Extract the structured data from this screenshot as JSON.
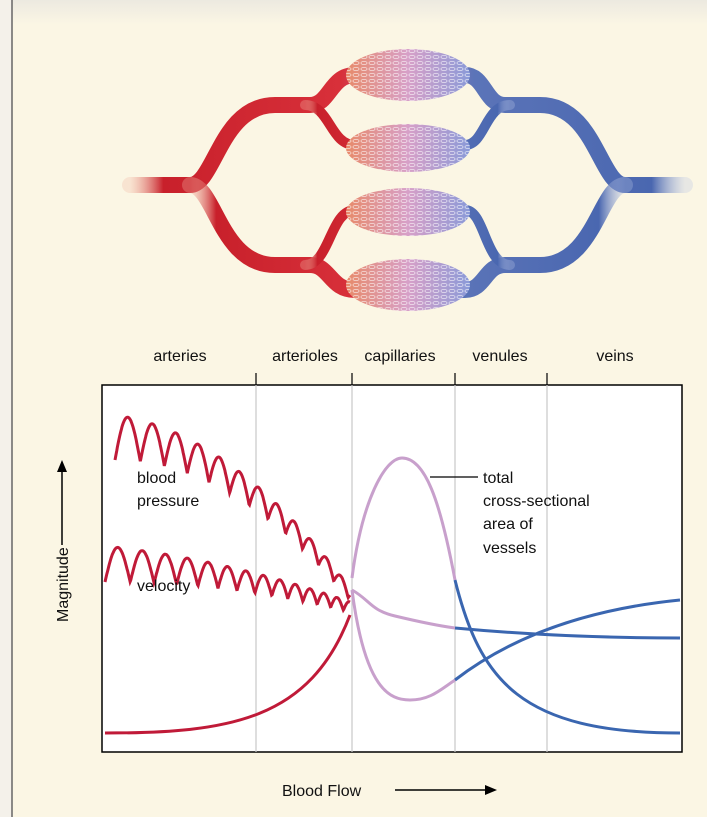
{
  "segments": [
    "arteries",
    "arterioles",
    "capillaries",
    "venules",
    "veins"
  ],
  "curve_labels": {
    "blood_pressure": [
      "blood",
      "pressure"
    ],
    "velocity": "velocity",
    "area": [
      "total",
      "cross-sectional",
      "area of",
      "vessels"
    ]
  },
  "y_axis_label": "Magnitude",
  "x_axis_label": "Blood Flow"
}
